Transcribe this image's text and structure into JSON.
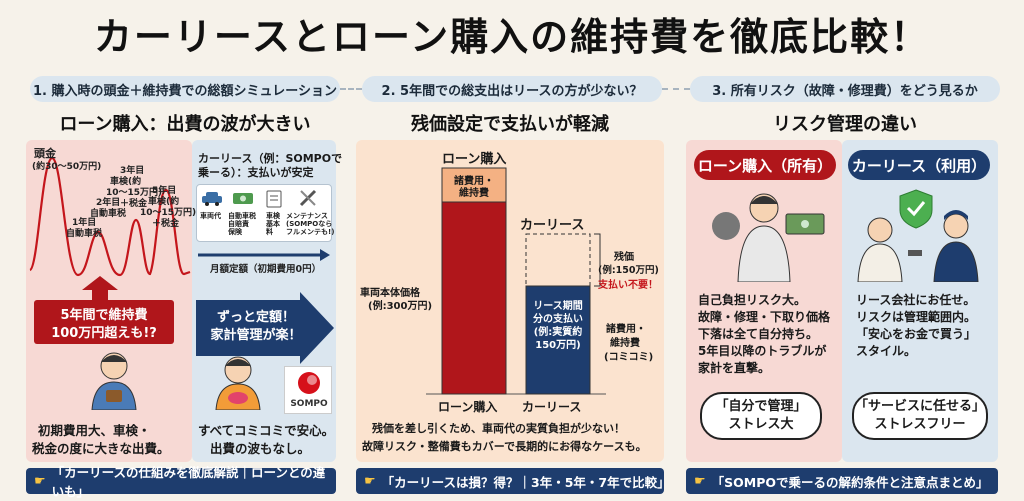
{
  "title": "カーリースとローン購入の維持費を徹底比較！",
  "steps": [
    {
      "label": "1. 購入時の頭金＋維持費での総額シミュレーション"
    },
    {
      "label": "2. 5年間での総支出はリースの方が少ない？"
    },
    {
      "label": "3. 所有リスク（故障・修理費）をどう見るか"
    }
  ],
  "col1": {
    "heading": "ローン購入：出費の波が大きい",
    "wave_labels": {
      "down": "頭金",
      "down_range": "(約30〜50万円)",
      "y1": "1年目",
      "y1b": "自動車税",
      "y2": "2年目",
      "y2b": "自動車税",
      "y3": "3年目",
      "y3b": "車検(約",
      "y3c": "10〜15万円)",
      "y3d": "＋税金",
      "y5": "5年目",
      "y5b": "車検(約",
      "y5c": "10〜15万円)",
      "y5d": "＋税金"
    },
    "lease_title": "カーリース（例：SOMPOで",
    "lease_title2": "乗ーる）：支払いが安定",
    "lease_items": [
      {
        "label": "車両代"
      },
      {
        "label": "自動車税\n自賠責\n保険"
      },
      {
        "label": "車検\n基本\n料"
      },
      {
        "label": "メンテナンス\n(SOMPOなら\nフルメンテも!)"
      }
    ],
    "monthly_label": "月額定額（初期費用0円）",
    "red_callout_1": "5年間で維持費",
    "red_callout_2": "100万円超えも!?",
    "blue_callout_1": "ずっと定額！",
    "blue_callout_2": "家計管理が楽！",
    "loan_caption_1": "初期費用大、車検・",
    "loan_caption_2": "税金の度に大きな出費。",
    "lease_caption_1": "すべてコミコミで安心。",
    "lease_caption_2": "出費の波もなし。",
    "sompo_logo": "SOMPO",
    "footer": "「カーリースの仕組みを徹底解説｜ローンとの違いも」"
  },
  "col2": {
    "heading": "残価設定で支払いが軽減",
    "chart_data": {
      "type": "bar",
      "categories": [
        "ローン購入",
        "カーリース"
      ],
      "top_label_loan": "ローン購入",
      "top_label_lease": "カーリース",
      "loan_segments": [
        {
          "name": "車両本体価格\n(例:300万円)",
          "color": "#b0161b"
        },
        {
          "name": "諸費用・\n維持費",
          "color": "#f4b183"
        }
      ],
      "lease_segments": [
        {
          "name": "リース期間\n分の支払い\n(例:実質約\n150万円)",
          "color": "#1e3d6e"
        },
        {
          "name": "残価\n(例:150万円)",
          "color": "#ffffff"
        }
      ]
    },
    "left_label_1": "車両本体価格",
    "left_label_2": "(例:300万円)",
    "loan_top_label": "ローン購入",
    "loan_cap_1": "諸費用・",
    "loan_cap_2": "維持費",
    "lease_top_label": "カーリース",
    "lease_bar_1": "リース期間",
    "lease_bar_2": "分の支払い",
    "lease_bar_3": "(例:実質約",
    "lease_bar_4": "150万円)",
    "residual_1": "残価",
    "residual_2": "(例:150万円)",
    "residual_3": "支払い不要！",
    "fees_1": "諸費用・",
    "fees_2": "維持費",
    "fees_3": "(コミコミ)",
    "xlabel_loan": "ローン購入",
    "xlabel_lease": "カーリース",
    "note_1": "残価を差し引くため、車両代の実質負担が少ない！",
    "note_2": "故障リスク・整備費もカバーで長期的にお得なケースも。",
    "footer": "「カーリースは損？得？｜3年・5年・7年で比較」"
  },
  "col3": {
    "heading": "リスク管理の違い",
    "loan_badge": "ローン購入（所有）",
    "lease_badge": "カーリース（利用）",
    "loan_text": [
      "自己負担リスク大。",
      "故障・修理・下取り価格",
      "下落は全て自分持ち。",
      "5年目以降のトラブルが",
      "家計を直撃。"
    ],
    "lease_text": [
      "リース会社にお任せ。",
      "リスクは管理範囲内。",
      "「安心をお金で買う」",
      "スタイル。"
    ],
    "loan_bubble_1": "「自分で管理」",
    "loan_bubble_2": "ストレス大",
    "lease_bubble_1": "「サービスに任せる」",
    "lease_bubble_2": "ストレスフリー",
    "footer": "「SOMPOで乗ーるの解約条件と注意点まとめ」"
  },
  "colors": {
    "loan_red": "#b0161b",
    "lease_navy": "#1e3d6e",
    "peach": "#f4b183"
  }
}
